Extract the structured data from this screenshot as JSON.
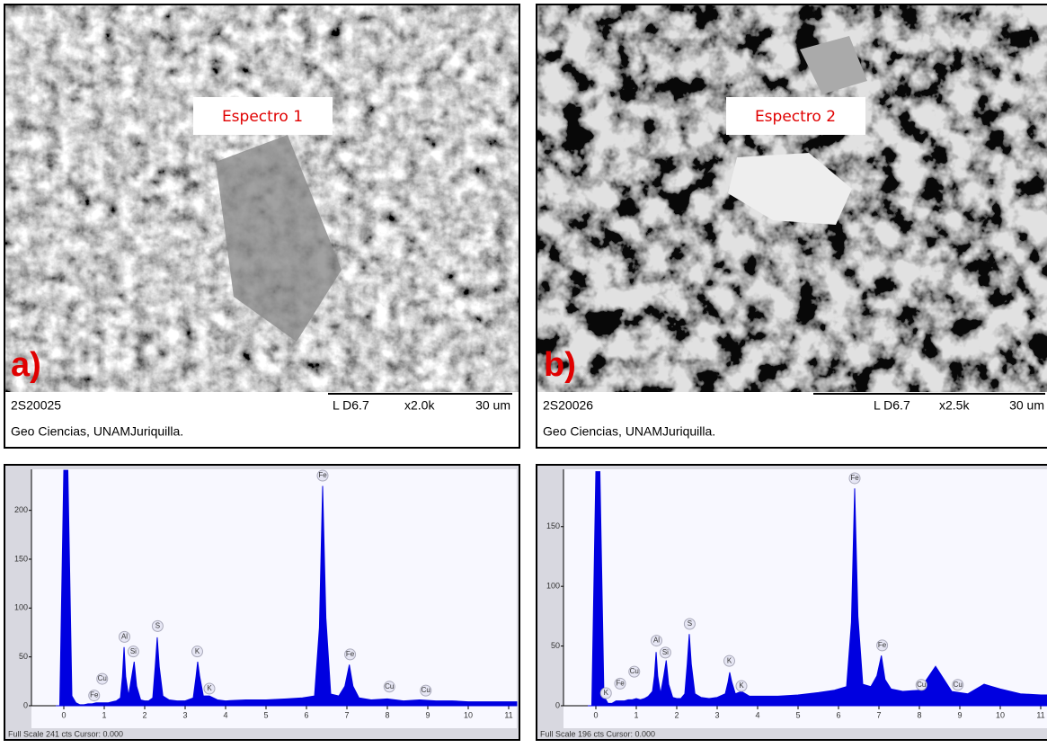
{
  "panels": [
    {
      "label": "a)",
      "spectrum": "Espectro 1",
      "sample": "2S20025",
      "detector": "L D6.7",
      "magnification": "x2.0k",
      "scale": "30 um",
      "caption": "Geo Ciencias, UNAMJuriquilla."
    },
    {
      "label": "b)",
      "spectrum": "Espectro 2",
      "sample": "2S20026",
      "detector": "L D6.7",
      "magnification": "x2.5k",
      "scale": "30 um",
      "caption": "Geo Ciencias, UNAMJuriquilla."
    }
  ],
  "chart_data": [
    {
      "type": "area",
      "color": "#0000e0",
      "footer": "Full Scale 241 cts Cursor: 0.000",
      "x": [
        -0.2,
        -0.1,
        0,
        0.05,
        0.1,
        0.2,
        0.3,
        0.4,
        0.5,
        0.6,
        0.7,
        0.8,
        0.9,
        1.0,
        1.1,
        1.2,
        1.3,
        1.4,
        1.45,
        1.49,
        1.53,
        1.6,
        1.68,
        1.74,
        1.8,
        1.9,
        2.0,
        2.1,
        2.2,
        2.26,
        2.31,
        2.36,
        2.45,
        2.6,
        2.8,
        3.0,
        3.2,
        3.27,
        3.31,
        3.36,
        3.45,
        3.6,
        3.8,
        4.0,
        4.5,
        5.0,
        5.5,
        5.9,
        6.2,
        6.32,
        6.4,
        6.48,
        6.6,
        6.8,
        6.95,
        7.06,
        7.15,
        7.3,
        7.6,
        8.0,
        8.4,
        8.8,
        9.2,
        9.6,
        10.0,
        10.5,
        11.0,
        11.2
      ],
      "values": [
        0,
        0,
        241,
        241,
        241,
        10,
        3,
        1,
        1,
        2,
        2,
        3,
        3,
        3,
        3,
        4,
        5,
        8,
        30,
        60,
        30,
        10,
        30,
        45,
        20,
        6,
        5,
        5,
        8,
        40,
        70,
        40,
        10,
        6,
        5,
        5,
        8,
        30,
        45,
        30,
        10,
        10,
        6,
        5,
        6,
        6,
        7,
        8,
        10,
        80,
        225,
        90,
        12,
        10,
        20,
        42,
        20,
        8,
        6,
        7,
        5,
        6,
        5,
        5,
        4,
        4,
        4,
        4
      ],
      "xlim": [
        -0.8,
        11.2
      ],
      "xticks": [
        0,
        1,
        2,
        3,
        4,
        5,
        6,
        7,
        8,
        9,
        10,
        11
      ],
      "ylim": [
        0,
        242
      ],
      "yticks": [
        0,
        50,
        100,
        150,
        200
      ],
      "annotations": [
        {
          "text": "Cu",
          "x": 0.95,
          "y": 22
        },
        {
          "text": "Fe",
          "x": 0.75,
          "y": 5
        },
        {
          "text": "Al",
          "x": 1.5,
          "y": 65
        },
        {
          "text": "Si",
          "x": 1.72,
          "y": 50
        },
        {
          "text": "S",
          "x": 2.32,
          "y": 76
        },
        {
          "text": "K",
          "x": 3.3,
          "y": 50
        },
        {
          "text": "K",
          "x": 3.6,
          "y": 12
        },
        {
          "text": "Fe",
          "x": 6.4,
          "y": 230
        },
        {
          "text": "Fe",
          "x": 7.08,
          "y": 47
        },
        {
          "text": "Cu",
          "x": 8.05,
          "y": 14
        },
        {
          "text": "Cu",
          "x": 8.95,
          "y": 10
        }
      ]
    },
    {
      "type": "area",
      "color": "#0000e0",
      "footer": "Full Scale 196 cts Cursor: 0.000",
      "x": [
        -0.2,
        -0.1,
        0,
        0.05,
        0.1,
        0.2,
        0.3,
        0.4,
        0.5,
        0.6,
        0.7,
        0.8,
        0.9,
        1.0,
        1.1,
        1.2,
        1.3,
        1.4,
        1.45,
        1.49,
        1.53,
        1.6,
        1.68,
        1.74,
        1.8,
        1.9,
        2.0,
        2.1,
        2.2,
        2.26,
        2.31,
        2.36,
        2.45,
        2.6,
        2.8,
        3.0,
        3.2,
        3.27,
        3.31,
        3.36,
        3.45,
        3.6,
        3.8,
        4.0,
        4.5,
        5.0,
        5.5,
        5.9,
        6.2,
        6.32,
        6.4,
        6.48,
        6.6,
        6.8,
        6.95,
        7.06,
        7.15,
        7.3,
        7.6,
        8.0,
        8.4,
        8.8,
        9.2,
        9.6,
        10.0,
        10.5,
        11.0,
        11.2
      ],
      "values": [
        0,
        0,
        196,
        196,
        196,
        8,
        2,
        2,
        4,
        4,
        4,
        5,
        5,
        6,
        5,
        6,
        8,
        12,
        25,
        45,
        25,
        10,
        25,
        38,
        18,
        7,
        6,
        6,
        10,
        35,
        60,
        35,
        10,
        7,
        6,
        7,
        10,
        20,
        28,
        20,
        10,
        12,
        8,
        8,
        8,
        9,
        11,
        13,
        16,
        70,
        182,
        75,
        18,
        16,
        25,
        42,
        22,
        14,
        12,
        13,
        33,
        12,
        10,
        18,
        14,
        10,
        9,
        9
      ],
      "xlim": [
        -0.8,
        11.2
      ],
      "xticks": [
        0,
        1,
        2,
        3,
        4,
        5,
        6,
        7,
        8,
        9,
        10,
        11
      ],
      "ylim": [
        0,
        198
      ],
      "yticks": [
        0,
        50,
        100,
        150
      ],
      "annotations": [
        {
          "text": "K",
          "x": 0.25,
          "y": 6
        },
        {
          "text": "Fe",
          "x": 0.6,
          "y": 14
        },
        {
          "text": "Cu",
          "x": 0.95,
          "y": 24
        },
        {
          "text": "Al",
          "x": 1.5,
          "y": 50
        },
        {
          "text": "Si",
          "x": 1.72,
          "y": 40
        },
        {
          "text": "S",
          "x": 2.32,
          "y": 64
        },
        {
          "text": "K",
          "x": 3.3,
          "y": 33
        },
        {
          "text": "K",
          "x": 3.6,
          "y": 12
        },
        {
          "text": "Fe",
          "x": 6.4,
          "y": 186
        },
        {
          "text": "Fe",
          "x": 7.08,
          "y": 46
        },
        {
          "text": "Cu",
          "x": 8.05,
          "y": 13
        },
        {
          "text": "Cu",
          "x": 8.95,
          "y": 13
        }
      ]
    }
  ]
}
